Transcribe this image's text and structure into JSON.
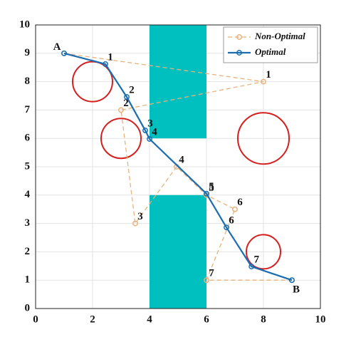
{
  "chart_data": {
    "type": "line",
    "xlim": [
      0,
      10
    ],
    "ylim": [
      0,
      10
    ],
    "xticks": [
      0,
      2,
      4,
      6,
      8,
      10
    ],
    "yticks": [
      0,
      1,
      2,
      3,
      4,
      5,
      6,
      7,
      8,
      9,
      10
    ],
    "grid": true,
    "legend": "top-right",
    "rectangles": [
      {
        "x": [
          4,
          6
        ],
        "y": [
          6,
          10
        ],
        "color": "#00bfbf"
      },
      {
        "x": [
          4,
          6
        ],
        "y": [
          0,
          4
        ],
        "color": "#00bfbf"
      }
    ],
    "circles": [
      {
        "cx": 2,
        "cy": 8,
        "r": 0.7,
        "color": "#d42020"
      },
      {
        "cx": 3,
        "cy": 6,
        "r": 0.7,
        "color": "#d42020"
      },
      {
        "cx": 8,
        "cy": 6,
        "r": 0.9,
        "color": "#d42020"
      },
      {
        "cx": 8,
        "cy": 2,
        "r": 0.6,
        "color": "#d42020"
      }
    ],
    "series": [
      {
        "name": "Non-Optimal",
        "color": "#e8b27c",
        "dashed": true,
        "x": [
          1,
          8,
          3,
          3.5,
          4.95,
          6,
          7,
          6,
          9
        ],
        "y": [
          9,
          8,
          7,
          3,
          5,
          4,
          3.5,
          1,
          1
        ],
        "labels": [
          null,
          "1",
          "2",
          "3",
          "4",
          "5",
          "6",
          "7",
          null
        ]
      },
      {
        "name": "Optimal",
        "color": "#1a6db0",
        "dashed": false,
        "x": [
          1,
          2.45,
          3.2,
          3.85,
          4,
          6,
          6.7,
          7.58,
          9
        ],
        "y": [
          9,
          8.62,
          7.46,
          6.28,
          5.98,
          4.05,
          2.86,
          1.48,
          1
        ],
        "labels": [
          "A",
          "1",
          "2",
          "3",
          "4",
          "5",
          "6",
          "7",
          "B"
        ]
      }
    ]
  }
}
